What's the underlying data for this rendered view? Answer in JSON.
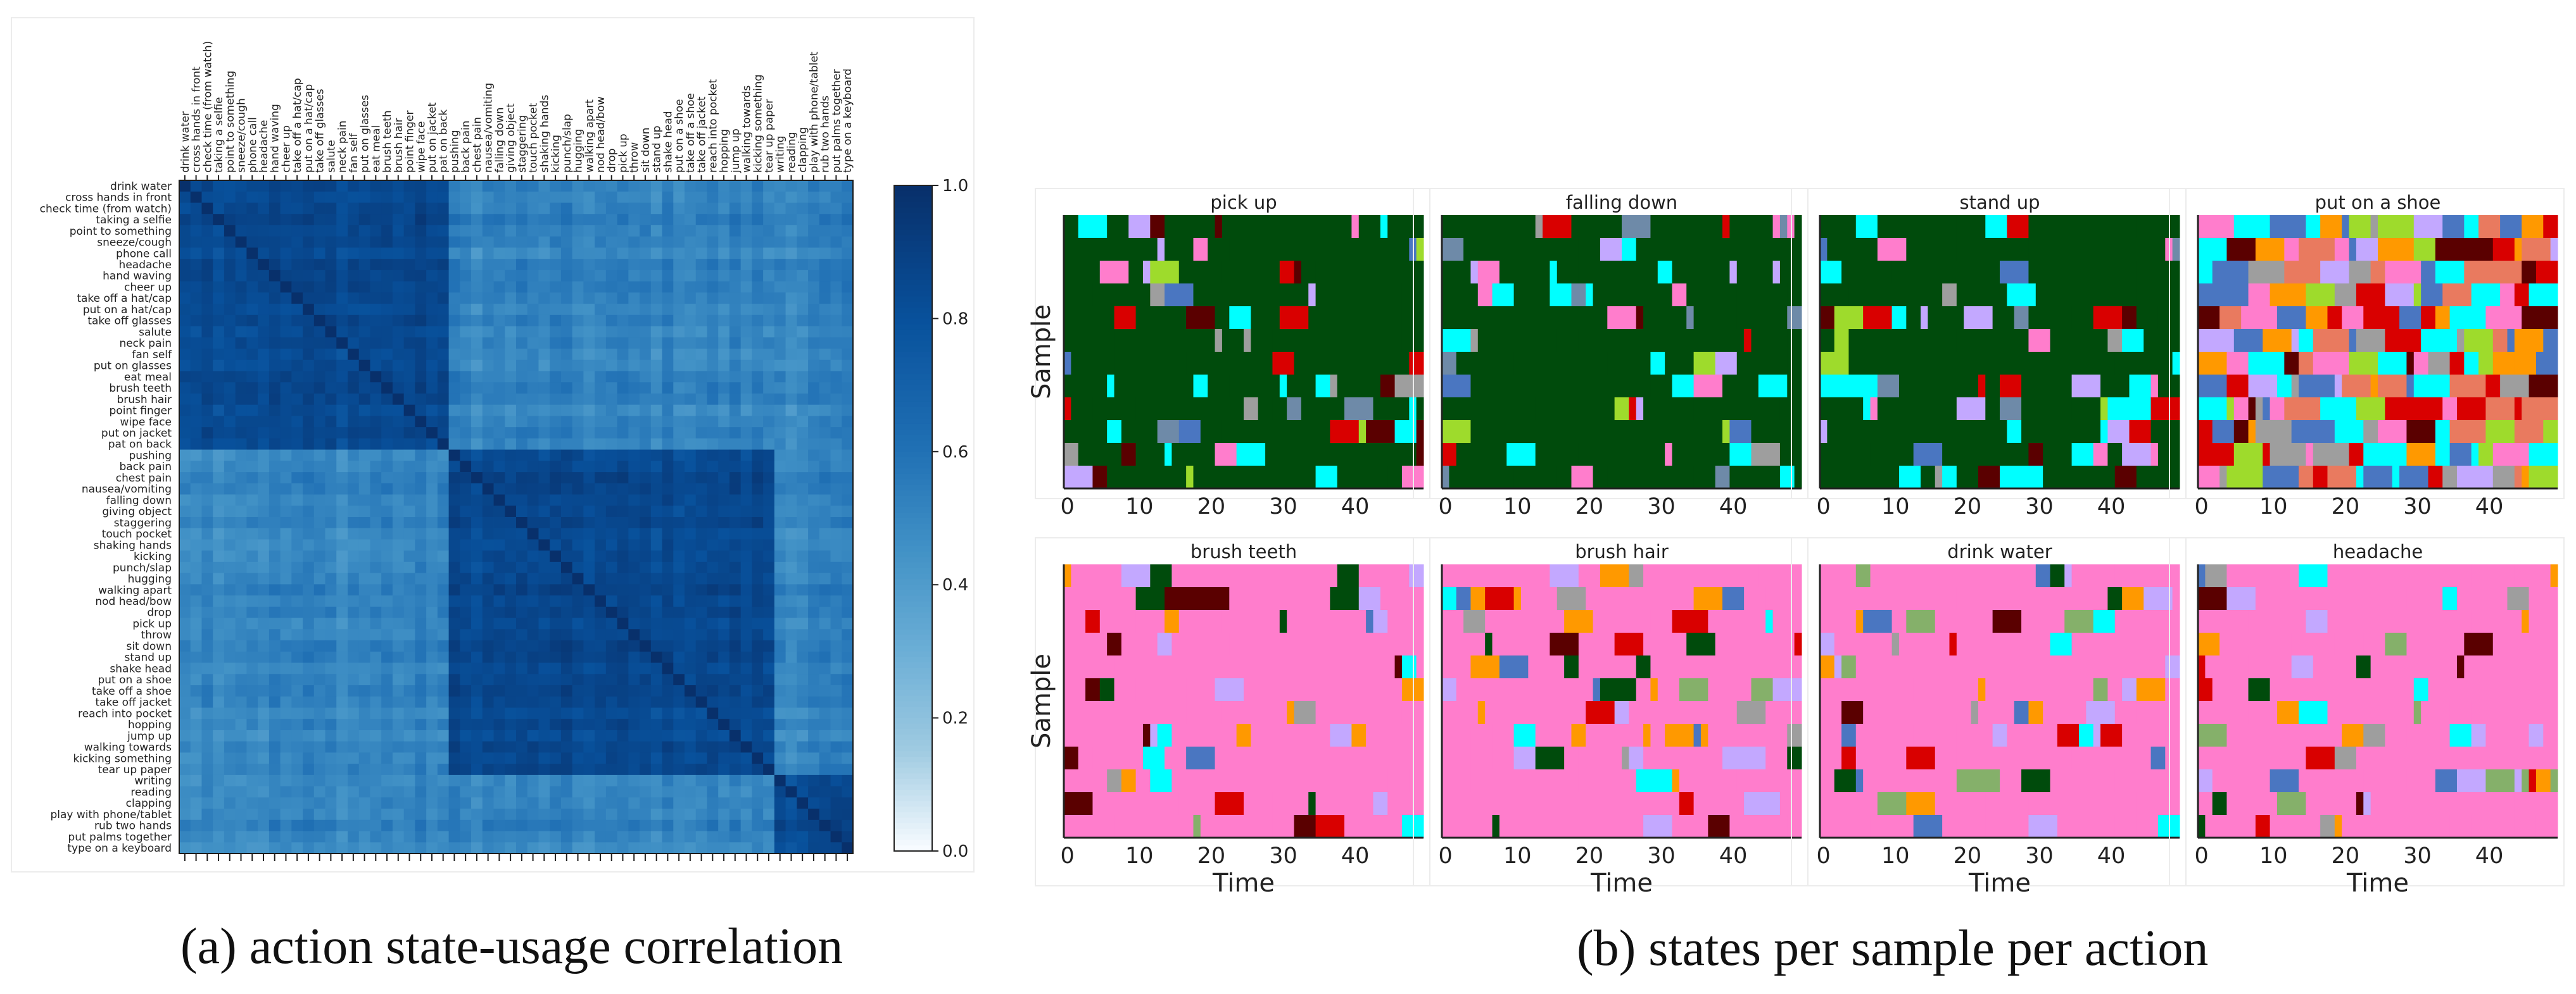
{
  "captions": {
    "a": "(a) action state-usage correlation",
    "b": "(b) states per sample per action"
  },
  "palette": [
    "#004b0c",
    "#00ffff",
    "#4a76c1",
    "#ff7dcc",
    "#9edb2c",
    "#c3a8ff",
    "#5a0000",
    "#d90000",
    "#ff9900",
    "#e97a5f",
    "#9e9e9e",
    "#6e8aa8",
    "#85b06a",
    "#b86d2b"
  ],
  "chart_data": [
    {
      "type": "heatmap",
      "title": "action state-usage correlation",
      "labels": [
        "drink water",
        "cross hands in front",
        "check time (from watch)",
        "taking a selfie",
        "point to something",
        "sneeze/cough",
        "phone call",
        "headache",
        "hand waving",
        "cheer up",
        "take off a hat/cap",
        "put on a hat/cap",
        "take off glasses",
        "salute",
        "neck pain",
        "fan self",
        "put on glasses",
        "eat meal",
        "brush teeth",
        "brush hair",
        "point finger",
        "wipe face",
        "put on jacket",
        "pat on back",
        "pushing",
        "back pain",
        "chest pain",
        "nausea/vomiting",
        "falling down",
        "giving object",
        "staggering",
        "touch pocket",
        "shaking hands",
        "kicking",
        "punch/slap",
        "hugging",
        "walking apart",
        "nod head/bow",
        "drop",
        "pick up",
        "throw",
        "sit down",
        "stand up",
        "shake head",
        "put on a shoe",
        "take off a shoe",
        "take off jacket",
        "reach into pocket",
        "hopping",
        "jump up",
        "walking towards",
        "kicking something",
        "tear up paper",
        "writing",
        "reading",
        "clapping",
        "play with phone/tablet",
        "rub two hands",
        "put palms together",
        "type on a keyboard"
      ],
      "groups": [
        0,
        0,
        0,
        0,
        0,
        0,
        0,
        0,
        0,
        0,
        0,
        0,
        0,
        0,
        0,
        0,
        0,
        0,
        0,
        0,
        0,
        0,
        0,
        0,
        1,
        1,
        1,
        1,
        1,
        1,
        1,
        1,
        1,
        1,
        1,
        1,
        1,
        1,
        1,
        1,
        1,
        1,
        1,
        1,
        1,
        1,
        1,
        1,
        1,
        1,
        1,
        1,
        1,
        2,
        2,
        2,
        2,
        2,
        2,
        2
      ],
      "colorbar": {
        "min": 0.0,
        "max": 1.0,
        "ticks": [
          "0.0",
          "0.2",
          "0.4",
          "0.6",
          "0.8",
          "1.0"
        ]
      }
    },
    {
      "type": "heatmap",
      "title": "states per sample per action",
      "xlabel": "Time",
      "ylabel": "Sample",
      "xticks": [
        0,
        10,
        20,
        30,
        40
      ],
      "time_steps": 50,
      "samples": 12,
      "panels": [
        {
          "title": "pick up",
          "style": "green"
        },
        {
          "title": "falling down",
          "style": "green"
        },
        {
          "title": "stand up",
          "style": "green"
        },
        {
          "title": "put on a shoe",
          "style": "mixed"
        },
        {
          "title": "brush teeth",
          "style": "pink"
        },
        {
          "title": "brush hair",
          "style": "pink"
        },
        {
          "title": "drink water",
          "style": "pink"
        },
        {
          "title": "headache",
          "style": "pink"
        }
      ]
    }
  ]
}
